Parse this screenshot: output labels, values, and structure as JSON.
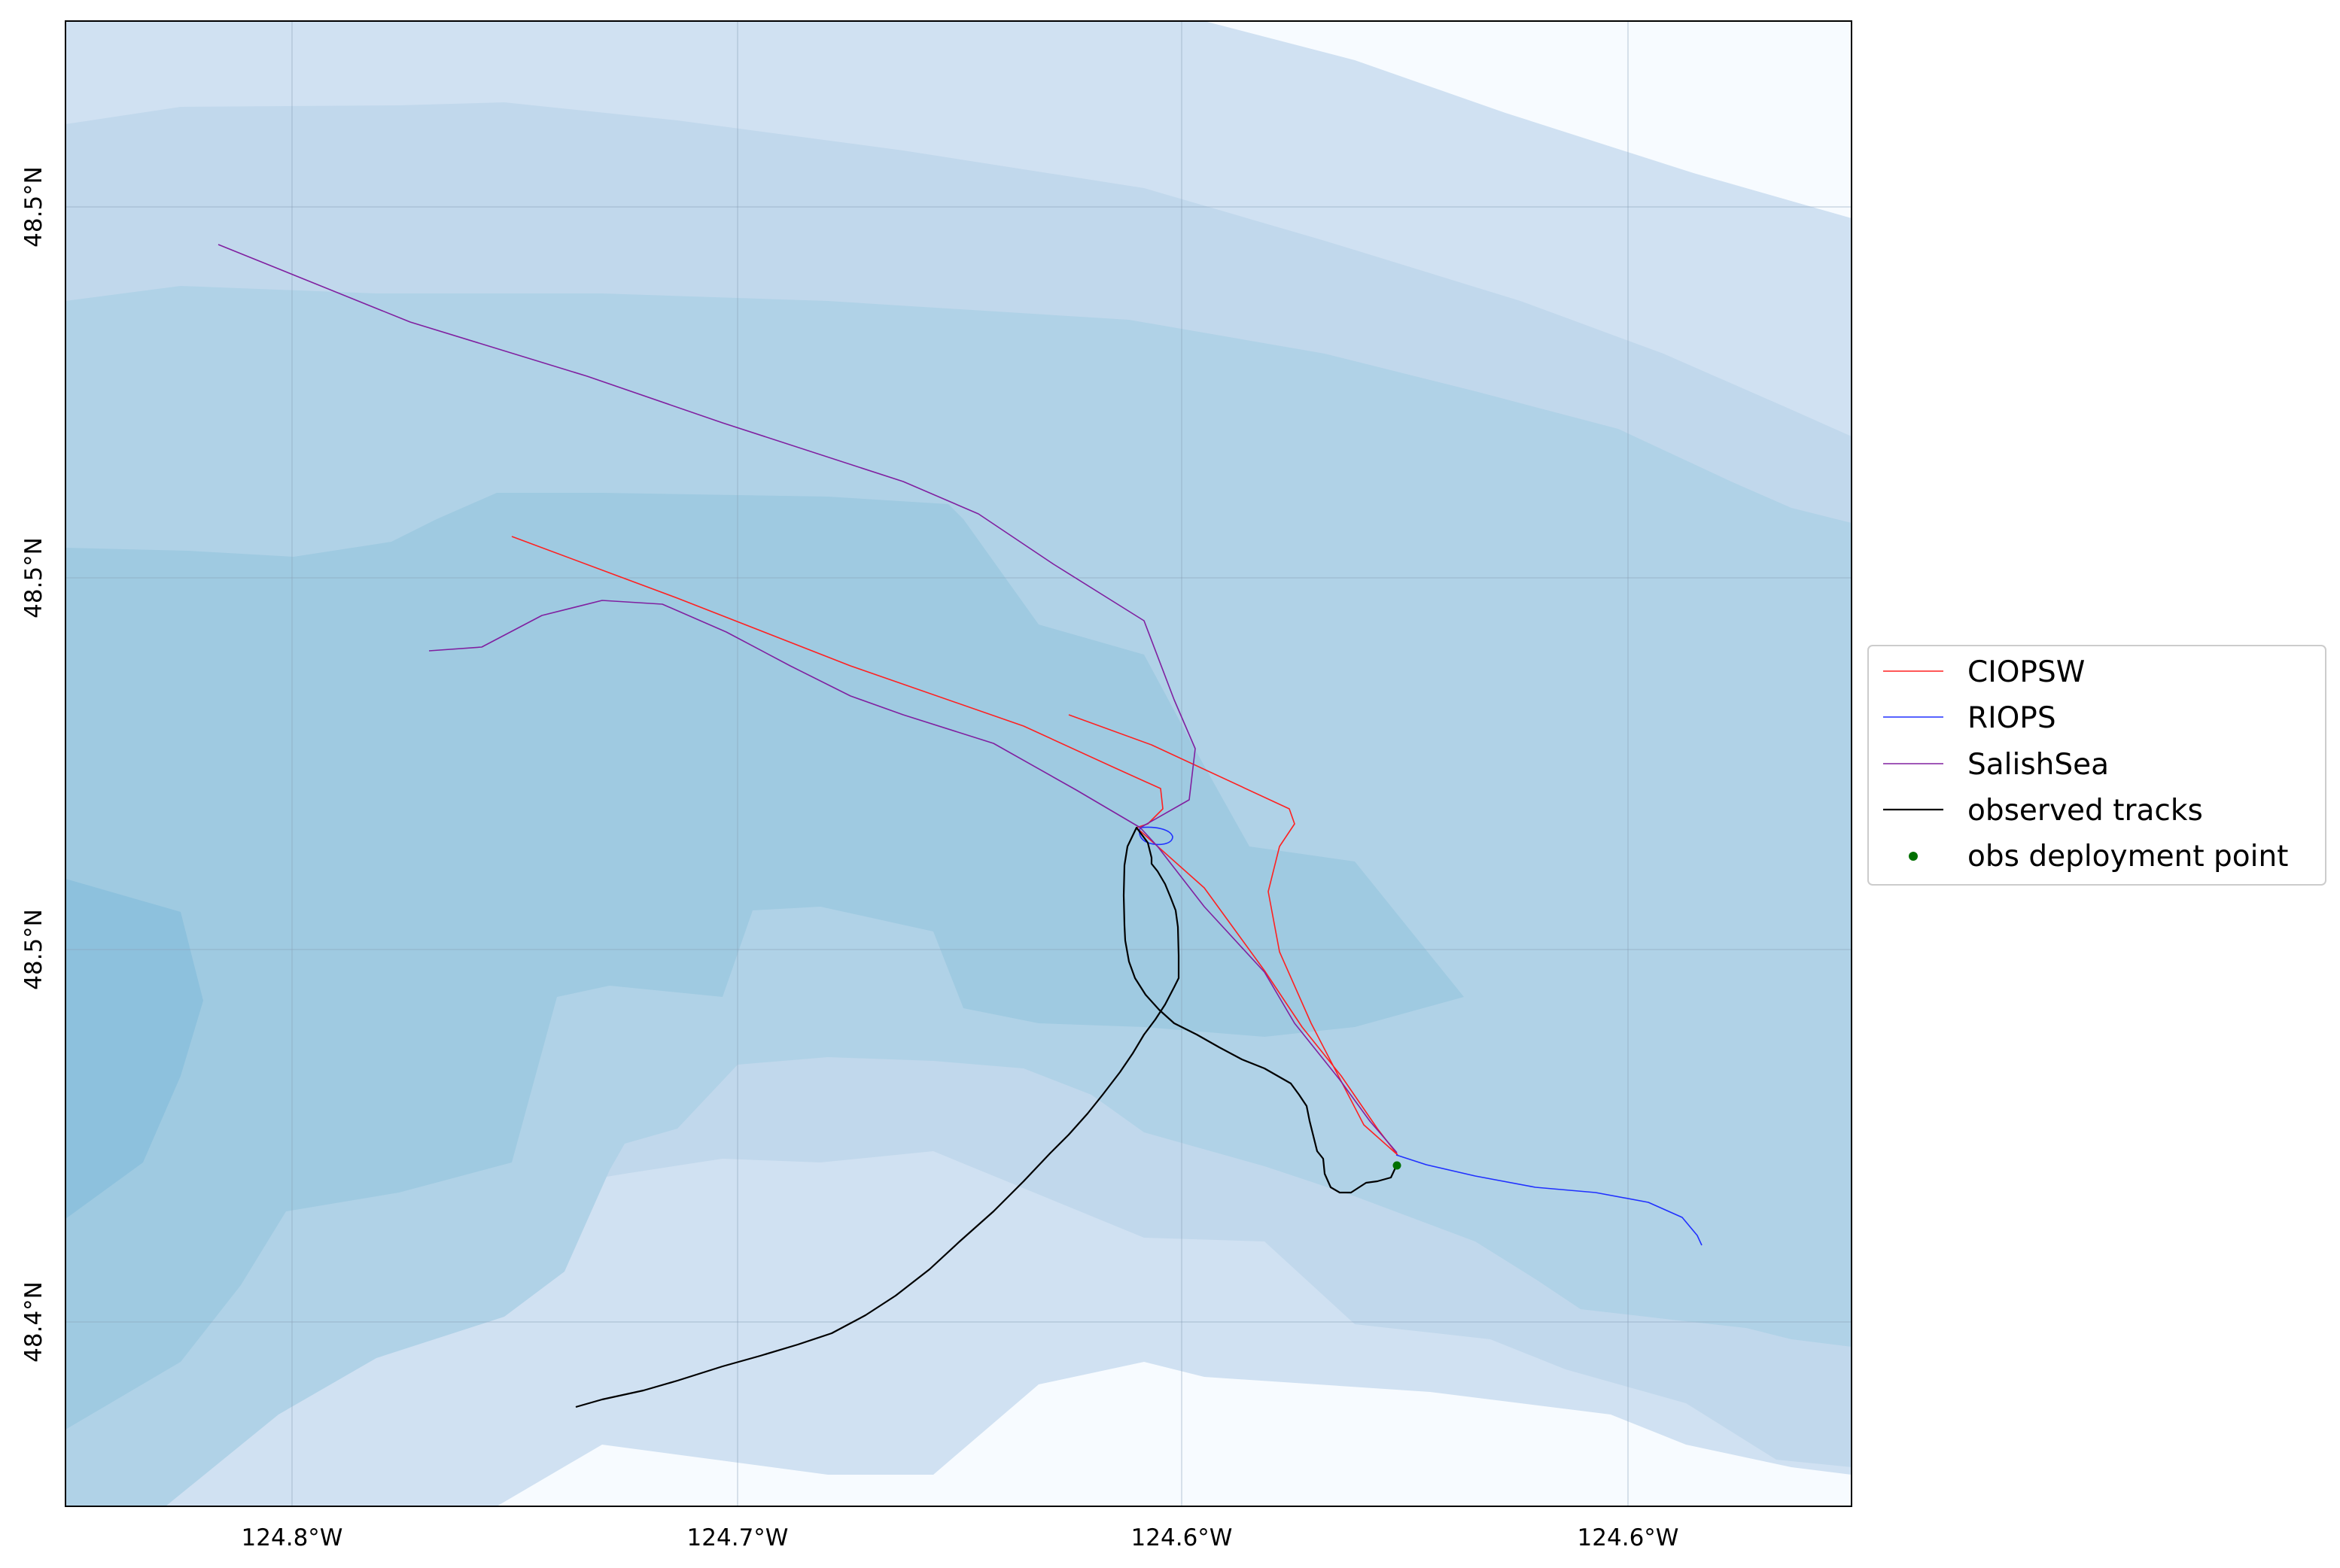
{
  "map": {
    "x_tick_labels": [
      "124.8°W",
      "124.7°W",
      "124.6°W",
      "124.6°W"
    ],
    "y_tick_labels": [
      "48.5°N",
      "48.5°N",
      "48.5°N",
      "48.4°N"
    ],
    "colors": {
      "bathymetry_levels": [
        "#f7fbff",
        "#d0e1f2",
        "#c1d8ec",
        "#b0d2e7",
        "#9fcae1",
        "#8dc1dd"
      ],
      "frame": "#000000",
      "gridline": "#8aa0b8"
    }
  },
  "legend": {
    "entries": [
      {
        "label": "CIOPSW",
        "color": "#ff2020",
        "kind": "line"
      },
      {
        "label": "RIOPS",
        "color": "#2030ff",
        "kind": "line"
      },
      {
        "label": "SalishSea",
        "color": "#8020a0",
        "kind": "line"
      },
      {
        "label": "observed tracks",
        "color": "#000000",
        "kind": "line"
      },
      {
        "label": "obs deployment point",
        "color": "#007000",
        "kind": "marker"
      }
    ]
  }
}
